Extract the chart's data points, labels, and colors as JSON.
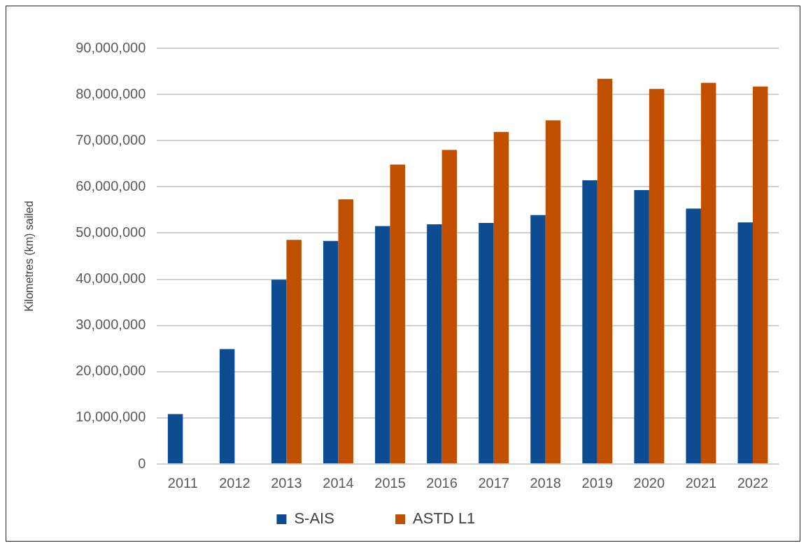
{
  "chart_data": {
    "type": "bar",
    "ylabel": "Kilometres (km) sailed",
    "categories": [
      "2011",
      "2012",
      "2013",
      "2014",
      "2015",
      "2016",
      "2017",
      "2018",
      "2019",
      "2020",
      "2021",
      "2022"
    ],
    "series": [
      {
        "name": "S-AIS",
        "color": "#0e4c92",
        "values": [
          10800000,
          24900000,
          39900000,
          48300000,
          51500000,
          51900000,
          52200000,
          53900000,
          61400000,
          59300000,
          55300000,
          52300000
        ]
      },
      {
        "name": "ASTD L1",
        "color": "#c05000",
        "values": [
          null,
          null,
          48500000,
          57300000,
          64800000,
          68000000,
          71900000,
          74400000,
          83400000,
          81200000,
          82500000,
          81700000
        ]
      }
    ],
    "ylim": [
      0,
      90000000
    ],
    "yticks": [
      {
        "value": 0,
        "label": "0"
      },
      {
        "value": 10000000,
        "label": "10,000,000"
      },
      {
        "value": 20000000,
        "label": "20,000,000"
      },
      {
        "value": 30000000,
        "label": "30,000,000"
      },
      {
        "value": 40000000,
        "label": "40,000,000"
      },
      {
        "value": 50000000,
        "label": "50,000,000"
      },
      {
        "value": 60000000,
        "label": "60,000,000"
      },
      {
        "value": 70000000,
        "label": "70,000,000"
      },
      {
        "value": 80000000,
        "label": "80,000,000"
      },
      {
        "value": 90000000,
        "label": "90,000,000"
      }
    ],
    "grid": "y",
    "legend": "bottom"
  }
}
